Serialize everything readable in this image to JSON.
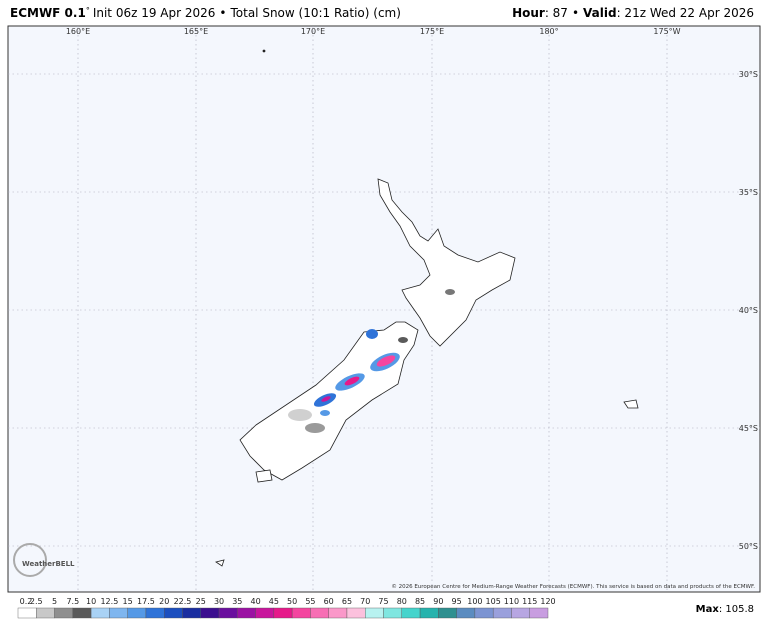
{
  "header": {
    "model": "ECMWF 0.1",
    "degree": "°",
    "init": "Init 06z 19 Apr 2026",
    "separator": "•",
    "product": "Total Snow (10:1 Ratio) (cm)",
    "hour_label": "Hour",
    "hour": ": 87",
    "valid_label": "Valid",
    "valid": ": 21z Wed 22 Apr 2026"
  },
  "map": {
    "longitudes": [
      "160°E",
      "165°E",
      "170°E",
      "175°E",
      "180°",
      "175°W"
    ],
    "latitudes": [
      "30°S",
      "35°S",
      "40°S",
      "45°S",
      "50°S"
    ],
    "copyright": "© 2026 European Centre for Medium-Range Weather Forecasts (ECMWF). This service is based on data and products of the ECMWF.",
    "logo": "WeatherBELL"
  },
  "colorbar": {
    "labels": [
      "0.2",
      "2.5",
      "5",
      "7.5",
      "10",
      "12.5",
      "15",
      "17.5",
      "20",
      "22.5",
      "25",
      "30",
      "35",
      "40",
      "45",
      "50",
      "55",
      "60",
      "65",
      "70",
      "75",
      "80",
      "85",
      "90",
      "95",
      "100",
      "105",
      "110",
      "115",
      "120"
    ],
    "colors": [
      "#ffffff",
      "#c8c8c8",
      "#8f8f8f",
      "#5a5a5a",
      "#a9d2f5",
      "#7fb6ef",
      "#5599e6",
      "#2f73d8",
      "#1c4fbf",
      "#1a2ea0",
      "#3c0f8f",
      "#6a0f9e",
      "#9b12a3",
      "#c8169c",
      "#e61a8a",
      "#f4459f",
      "#f76eb4",
      "#fa98c9",
      "#fcc1dd",
      "#b8f2f0",
      "#7fe6e0",
      "#45d4cc",
      "#26b3ad",
      "#2f9090",
      "#5b8cc0",
      "#7c94d2",
      "#9aa0dc",
      "#b7a6e2",
      "#c89de0"
    ]
  },
  "max": {
    "label": "Max",
    "value": ": 105.8"
  }
}
